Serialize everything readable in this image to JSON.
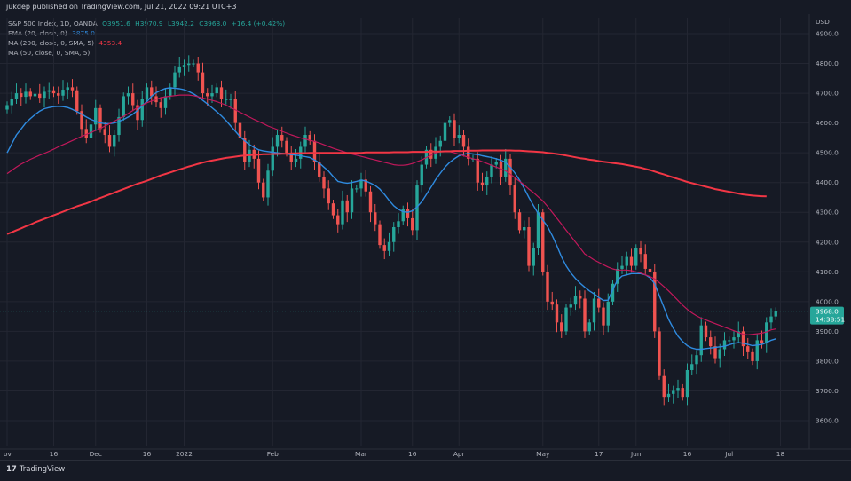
{
  "header": {
    "published_line": "jukdep published on TradingView.com, Jul 21, 2022 09:21 UTC+3"
  },
  "legend": {
    "symbol": "S&P 500 Index, 1D, OANDA",
    "open": "O3951.6",
    "high": "H3970.9",
    "low": "L3942.2",
    "close": "C3968.0",
    "change": "+16.4 (+0.42%)",
    "ema20_label": "EMA (20, close, 0)",
    "ema20_value": "3875.0",
    "ma200_label": "MA (200, close, 0, SMA, 5)",
    "ma200_value": "4353.4",
    "ma50_label": "MA (50, close, 0, SMA, 5)"
  },
  "price_axis": {
    "currency": "USD",
    "ticks": [
      "4900.0",
      "4800.0",
      "4700.0",
      "4600.0",
      "4500.0",
      "4400.0",
      "4300.0",
      "4200.0",
      "4100.0",
      "4000.0",
      "3900.0",
      "3800.0",
      "3700.0",
      "3600.0"
    ],
    "last_price_label": "3968.0",
    "countdown_label": "14:38:51"
  },
  "time_axis": {
    "labels": [
      {
        "text": "ov",
        "i": 0
      },
      {
        "text": "16",
        "i": 10
      },
      {
        "text": "Dec",
        "i": 19
      },
      {
        "text": "16",
        "i": 30
      },
      {
        "text": "2022",
        "i": 38
      },
      {
        "text": "Feb",
        "i": 57
      },
      {
        "text": "Mar",
        "i": 76
      },
      {
        "text": "16",
        "i": 87
      },
      {
        "text": "Apr",
        "i": 97
      },
      {
        "text": "May",
        "i": 115
      },
      {
        "text": "17",
        "i": 127
      },
      {
        "text": "Jun",
        "i": 135
      },
      {
        "text": "16",
        "i": 146
      },
      {
        "text": "Jul",
        "i": 155
      },
      {
        "text": "18",
        "i": 166
      }
    ]
  },
  "footer": {
    "logo_mark": "17",
    "logo_text": "TradingView"
  },
  "colors": {
    "background": "#161a25",
    "grid": "#232632",
    "up_candle": "#26a69a",
    "down_candle": "#ef5350",
    "ema20": "#2f8be0",
    "ma50": "#c2185b",
    "ma200": "#f23645",
    "last_price_bg": "#26a69a"
  },
  "chart_data": {
    "type": "candlestick",
    "title": "S&P 500 Index, 1D, OANDA",
    "ylabel": "USD",
    "ylim": [
      3560,
      4960
    ],
    "grid": true,
    "legend_position": "top-left",
    "ohlc_series": {
      "name": "S&P 500 Index",
      "close": [
        4660,
        4682,
        4700,
        4688,
        4705,
        4690,
        4698,
        4685,
        4705,
        4710,
        4700,
        4692,
        4712,
        4720,
        4710,
        4640,
        4580,
        4550,
        4595,
        4650,
        4580,
        4560,
        4520,
        4560,
        4620,
        4690,
        4700,
        4660,
        4610,
        4680,
        4720,
        4690,
        4670,
        4650,
        4690,
        4720,
        4770,
        4790,
        4795,
        4800,
        4800,
        4770,
        4700,
        4690,
        4700,
        4720,
        4680,
        4680,
        4680,
        4600,
        4550,
        4470,
        4510,
        4480,
        4400,
        4350,
        4440,
        4520,
        4560,
        4540,
        4500,
        4470,
        4480,
        4520,
        4560,
        4540,
        4470,
        4420,
        4380,
        4330,
        4290,
        4260,
        4340,
        4300,
        4380,
        4380,
        4410,
        4370,
        4300,
        4260,
        4190,
        4170,
        4200,
        4250,
        4270,
        4310,
        4280,
        4240,
        4390,
        4460,
        4510,
        4480,
        4520,
        4540,
        4600,
        4610,
        4550,
        4560,
        4520,
        4480,
        4480,
        4400,
        4390,
        4420,
        4460,
        4470,
        4420,
        4480,
        4390,
        4300,
        4240,
        4250,
        4120,
        4180,
        4300,
        4100,
        4000,
        3990,
        3930,
        3900,
        3980,
        3990,
        4020,
        4010,
        3900,
        3930,
        4010,
        3980,
        3920,
        4000,
        4060,
        4110,
        4120,
        4150,
        4120,
        4180,
        4160,
        4110,
        4100,
        3900,
        3750,
        3680,
        3690,
        3700,
        3710,
        3680,
        3770,
        3790,
        3820,
        3920,
        3880,
        3850,
        3810,
        3840,
        3870,
        3870,
        3880,
        3900,
        3850,
        3830,
        3800,
        3870,
        3860,
        3930,
        3950,
        3968
      ],
      "wick_range": 25
    },
    "series": [
      {
        "name": "EMA (20, close, 0)",
        "values": [
          4500,
          4530,
          4560,
          4580,
          4600,
          4615,
          4628,
          4640,
          4648,
          4652,
          4655,
          4656,
          4655,
          4652,
          4646,
          4638,
          4630,
          4620,
          4612,
          4606,
          4600,
          4598,
          4598,
          4600,
          4605,
          4612,
          4620,
          4630,
          4642,
          4658,
          4672,
          4690,
          4702,
          4710,
          4716,
          4718,
          4717,
          4715,
          4712,
          4706,
          4698,
          4688,
          4676,
          4664,
          4651,
          4638,
          4624,
          4608,
          4590,
          4572,
          4554,
          4540,
          4528,
          4518,
          4510,
          4506,
          4504,
          4502,
          4500,
          4498,
          4496,
          4494,
          4492,
          4490,
          4487,
          4484,
          4476,
          4466,
          4452,
          4438,
          4420,
          4404,
          4400,
          4398,
          4400,
          4404,
          4408,
          4405,
          4398,
          4390,
          4378,
          4360,
          4340,
          4322,
          4310,
          4302,
          4300,
          4305,
          4318,
          4336,
          4360,
          4385,
          4410,
          4432,
          4452,
          4468,
          4480,
          4490,
          4495,
          4498,
          4496,
          4494,
          4490,
          4487,
          4484,
          4480,
          4475,
          4468,
          4452,
          4432,
          4408,
          4380,
          4350,
          4322,
          4296,
          4274,
          4252,
          4222,
          4188,
          4150,
          4120,
          4096,
          4078,
          4062,
          4048,
          4036,
          4026,
          4014,
          4004,
          4005,
          4040,
          4072,
          4086,
          4090,
          4094,
          4094,
          4094,
          4090,
          4080,
          4060,
          4020,
          3980,
          3940,
          3910,
          3884,
          3866,
          3852,
          3844,
          3840,
          3840,
          3842,
          3844,
          3846,
          3848,
          3850,
          3855,
          3860,
          3862,
          3860,
          3856,
          3852,
          3854,
          3856,
          3862,
          3870,
          3875
        ]
      },
      {
        "name": "MA (50, close, 0, SMA, 5)",
        "values": [
          4430,
          4441,
          4452,
          4462,
          4470,
          4478,
          4485,
          4492,
          4498,
          4505,
          4512,
          4520,
          4527,
          4534,
          4541,
          4548,
          4555,
          4562,
          4568,
          4575,
          4582,
          4590,
          4598,
          4606,
          4614,
          4622,
          4632,
          4642,
          4652,
          4660,
          4668,
          4674,
          4680,
          4685,
          4688,
          4690,
          4692,
          4694,
          4694,
          4694,
          4692,
          4688,
          4684,
          4680,
          4676,
          4672,
          4666,
          4660,
          4652,
          4644,
          4636,
          4628,
          4620,
          4612,
          4605,
          4598,
          4590,
          4584,
          4578,
          4572,
          4566,
          4560,
          4555,
          4550,
          4546,
          4542,
          4538,
          4533,
          4527,
          4521,
          4515,
          4510,
          4505,
          4500,
          4496,
          4492,
          4488,
          4484,
          4480,
          4476,
          4472,
          4468,
          4464,
          4460,
          4458,
          4458,
          4460,
          4464,
          4470,
          4476,
          4484,
          4492,
          4500,
          4504,
          4504,
          4504,
          4500,
          4495,
          4490,
          4485,
          4480,
          4476,
          4470,
          4464,
          4458,
          4452,
          4446,
          4440,
          4428,
          4416,
          4404,
          4392,
          4378,
          4366,
          4352,
          4338,
          4320,
          4300,
          4280,
          4260,
          4240,
          4220,
          4200,
          4180,
          4160,
          4150,
          4140,
          4132,
          4124,
          4116,
          4110,
          4106,
          4106,
          4106,
          4104,
          4100,
          4096,
          4090,
          4084,
          4076,
          4064,
          4050,
          4036,
          4020,
          4004,
          3988,
          3974,
          3962,
          3952,
          3944,
          3938,
          3932,
          3926,
          3920,
          3914,
          3908,
          3902,
          3896,
          3890,
          3888,
          3890,
          3892,
          3894,
          3898,
          3905,
          3908
        ]
      },
      {
        "name": "MA (200, close, 0, SMA, 5)",
        "values": [
          4227,
          4233,
          4240,
          4246,
          4253,
          4259,
          4266,
          4272,
          4278,
          4284,
          4290,
          4296,
          4302,
          4308,
          4314,
          4320,
          4325,
          4330,
          4336,
          4342,
          4348,
          4354,
          4360,
          4366,
          4372,
          4378,
          4384,
          4390,
          4396,
          4401,
          4406,
          4412,
          4418,
          4424,
          4429,
          4434,
          4439,
          4444,
          4449,
          4454,
          4458,
          4463,
          4467,
          4471,
          4474,
          4477,
          4480,
          4483,
          4485,
          4487,
          4489,
          4491,
          4492,
          4493,
          4494,
          4495,
          4495,
          4496,
          4496,
          4497,
          4497,
          4498,
          4498,
          4499,
          4499,
          4500,
          4500,
          4500,
          4500,
          4500,
          4500,
          4500,
          4500,
          4500,
          4500,
          4500,
          4500,
          4501,
          4501,
          4501,
          4501,
          4501,
          4501,
          4502,
          4502,
          4502,
          4502,
          4503,
          4503,
          4503,
          4503,
          4504,
          4504,
          4504,
          4505,
          4505,
          4506,
          4506,
          4506,
          4507,
          4507,
          4507,
          4508,
          4508,
          4508,
          4508,
          4508,
          4508,
          4508,
          4507,
          4507,
          4506,
          4505,
          4504,
          4503,
          4502,
          4500,
          4498,
          4496,
          4494,
          4491,
          4488,
          4485,
          4482,
          4480,
          4477,
          4475,
          4472,
          4470,
          4468,
          4466,
          4464,
          4462,
          4459,
          4456,
          4453,
          4450,
          4446,
          4442,
          4437,
          4432,
          4427,
          4422,
          4417,
          4412,
          4407,
          4402,
          4398,
          4394,
          4390,
          4386,
          4382,
          4378,
          4375,
          4372,
          4369,
          4366,
          4363,
          4360,
          4358,
          4356,
          4355,
          4354,
          4353.4
        ]
      }
    ]
  }
}
